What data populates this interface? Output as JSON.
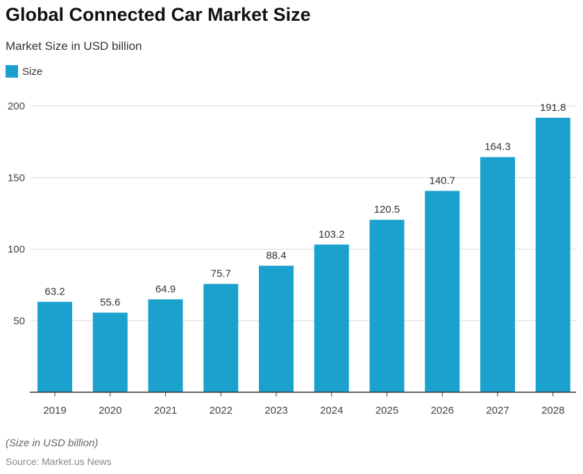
{
  "title": "Global Connected Car Market Size",
  "subtitle": "Market Size in USD billion",
  "note": "(Size in USD billion)",
  "source": "Source: Market.us News",
  "chart_data": {
    "type": "bar",
    "categories": [
      "2019",
      "2020",
      "2021",
      "2022",
      "2023",
      "2024",
      "2025",
      "2026",
      "2027",
      "2028"
    ],
    "series": [
      {
        "name": "Size",
        "values": [
          63.2,
          55.6,
          64.9,
          75.7,
          88.4,
          103.2,
          120.5,
          140.7,
          164.3,
          191.8
        ],
        "color": "#1ba1ce"
      }
    ],
    "yticks": [
      50,
      100,
      150,
      200
    ],
    "ylim": [
      0,
      200
    ],
    "grid": true,
    "legend": "top-left"
  }
}
